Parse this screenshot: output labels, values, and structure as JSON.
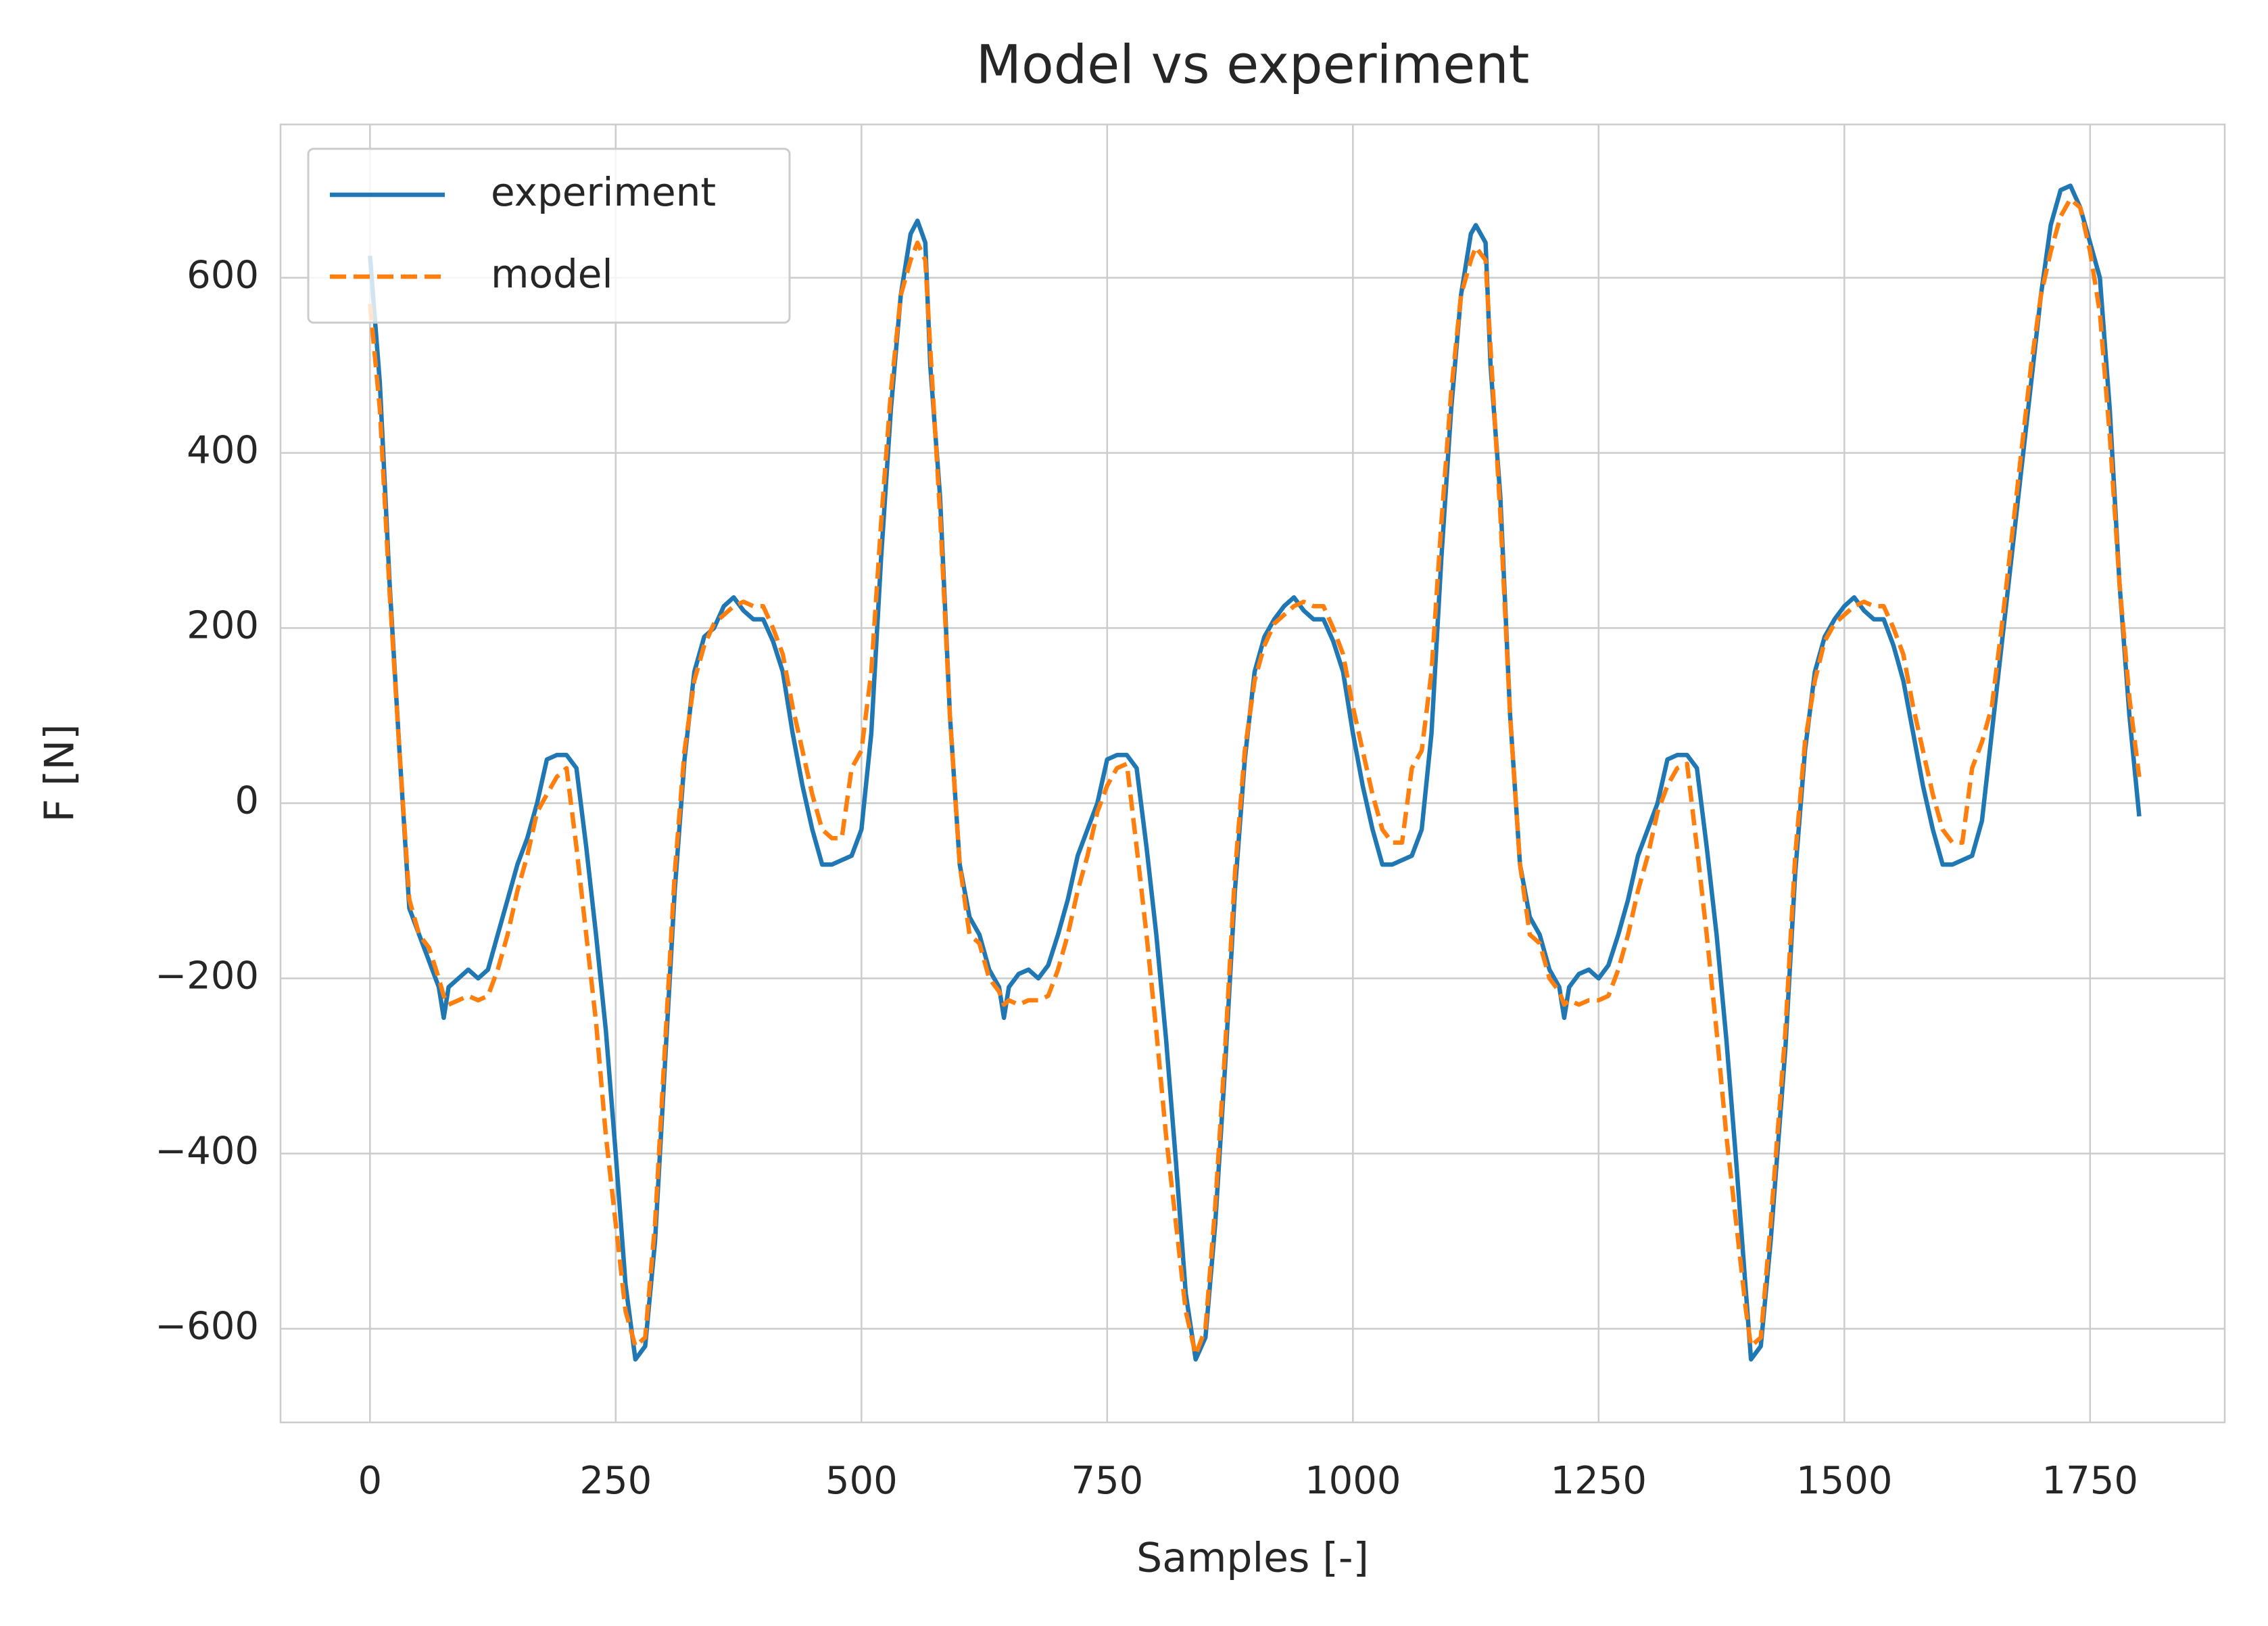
{
  "chart_data": {
    "type": "line",
    "title": "Model vs experiment",
    "xlabel": "Samples [-]",
    "ylabel": "F [N]",
    "x": [
      0,
      10,
      20,
      30,
      40,
      50,
      60,
      70,
      75,
      80,
      90,
      100,
      110,
      120,
      130,
      140,
      150,
      160,
      170,
      180,
      190,
      200,
      210,
      220,
      230,
      240,
      250,
      260,
      270,
      280,
      290,
      300,
      310,
      320,
      330,
      340,
      350,
      360,
      370,
      380,
      390,
      400,
      410,
      420,
      430,
      440,
      450,
      460,
      470,
      480,
      490,
      500,
      510,
      520,
      530,
      540,
      550,
      557,
      565,
      570,
      580,
      590,
      600,
      610,
      620,
      630,
      640,
      645,
      650,
      660,
      670,
      680,
      690,
      700,
      710,
      720,
      730,
      740,
      750,
      760,
      770,
      780,
      790,
      800,
      810,
      820,
      830,
      840,
      850,
      860,
      870,
      880,
      890,
      900,
      910,
      920,
      930,
      940,
      950,
      960,
      970,
      980,
      990,
      1000,
      1010,
      1020,
      1030,
      1040,
      1050,
      1060,
      1070,
      1080,
      1090,
      1100,
      1110,
      1120,
      1125,
      1135,
      1140,
      1150,
      1160,
      1170,
      1180,
      1190,
      1200,
      1210,
      1215,
      1220,
      1230,
      1240,
      1250,
      1260,
      1270,
      1280,
      1290,
      1300,
      1310,
      1320,
      1330,
      1340,
      1350,
      1360,
      1370,
      1380,
      1390,
      1400,
      1405,
      1415,
      1425,
      1440,
      1450,
      1460,
      1470,
      1480,
      1490,
      1500,
      1510,
      1520,
      1530,
      1540,
      1550,
      1560,
      1570,
      1580,
      1590,
      1600,
      1610,
      1620,
      1630,
      1640,
      1650,
      1660,
      1670,
      1680,
      1690,
      1700,
      1710,
      1720,
      1730,
      1740,
      1750,
      1760,
      1770,
      1780,
      1790,
      1800
    ],
    "series": [
      {
        "name": "experiment",
        "color": "#1f77b4",
        "dash": "solid",
        "values": [
          625,
          480,
          250,
          60,
          -120,
          -150,
          -180,
          -210,
          -245,
          -210,
          -200,
          -190,
          -200,
          -190,
          -150,
          -110,
          -70,
          -40,
          0,
          50,
          55,
          55,
          40,
          -50,
          -150,
          -260,
          -400,
          -550,
          -635,
          -620,
          -500,
          -300,
          -100,
          50,
          150,
          190,
          200,
          225,
          235,
          220,
          210,
          210,
          185,
          150,
          80,
          20,
          -30,
          -70,
          -70,
          -65,
          -60,
          -30,
          80,
          280,
          450,
          580,
          650,
          665,
          640,
          500,
          350,
          100,
          -70,
          -130,
          -150,
          -190,
          -210,
          -245,
          -210,
          -195,
          -190,
          -200,
          -185,
          -150,
          -110,
          -60,
          -30,
          0,
          50,
          55,
          55,
          40,
          -50,
          -150,
          -270,
          -410,
          -560,
          -635,
          -610,
          -480,
          -300,
          -100,
          50,
          150,
          190,
          210,
          225,
          235,
          220,
          210,
          210,
          185,
          150,
          80,
          20,
          -30,
          -70,
          -70,
          -65,
          -60,
          -30,
          80,
          280,
          450,
          580,
          650,
          660,
          640,
          500,
          350,
          100,
          -70,
          -130,
          -150,
          -190,
          -210,
          -245,
          -210,
          -195,
          -190,
          -200,
          -185,
          -150,
          -110,
          -60,
          -30,
          0,
          50,
          55,
          55,
          40,
          -50,
          -150,
          -270,
          -410,
          -560,
          -635,
          -620,
          -500,
          -280,
          -80,
          60,
          150,
          190,
          210,
          225,
          235,
          220,
          210,
          210,
          180,
          140,
          80,
          20,
          -30,
          -70,
          -70,
          -65,
          -60,
          -20,
          80,
          180,
          280,
          380,
          480,
          580,
          660,
          700,
          705,
          680,
          640,
          600,
          450,
          250,
          100,
          -15
        ]
      },
      {
        "name": "model",
        "color": "#ff7f0e",
        "dash": "dashed",
        "values": [
          570,
          450,
          240,
          60,
          -110,
          -150,
          -165,
          -200,
          -220,
          -230,
          -225,
          -220,
          -225,
          -220,
          -190,
          -150,
          -100,
          -60,
          -10,
          10,
          30,
          40,
          -50,
          -150,
          -250,
          -380,
          -480,
          -580,
          -620,
          -610,
          -480,
          -280,
          -80,
          60,
          140,
          180,
          205,
          215,
          225,
          230,
          225,
          225,
          200,
          170,
          110,
          60,
          10,
          -30,
          -40,
          -40,
          40,
          60,
          150,
          320,
          470,
          580,
          620,
          640,
          620,
          520,
          330,
          100,
          -70,
          -150,
          -160,
          -200,
          -215,
          -230,
          -225,
          -230,
          -225,
          -225,
          -220,
          -190,
          -150,
          -100,
          -60,
          -10,
          20,
          40,
          45,
          -50,
          -150,
          -260,
          -380,
          -480,
          -580,
          -630,
          -600,
          -460,
          -280,
          -80,
          60,
          140,
          180,
          205,
          215,
          225,
          230,
          225,
          225,
          200,
          170,
          110,
          60,
          10,
          -30,
          -45,
          -45,
          40,
          60,
          150,
          320,
          470,
          580,
          620,
          635,
          620,
          520,
          330,
          100,
          -70,
          -150,
          -160,
          -200,
          -215,
          -230,
          -225,
          -230,
          -225,
          -225,
          -220,
          -190,
          -150,
          -100,
          -60,
          -10,
          20,
          40,
          45,
          -50,
          -150,
          -260,
          -380,
          -480,
          -580,
          -620,
          -610,
          -480,
          -260,
          -60,
          70,
          140,
          185,
          205,
          215,
          225,
          230,
          225,
          225,
          200,
          170,
          110,
          60,
          10,
          -30,
          -45,
          -45,
          40,
          70,
          110,
          200,
          300,
          400,
          500,
          580,
          630,
          670,
          690,
          680,
          630,
          560,
          420,
          250,
          120,
          30
        ]
      }
    ],
    "xlim": [
      -91,
      1887
    ],
    "ylim": [
      -707,
      775
    ],
    "xticks": [
      0,
      250,
      500,
      750,
      1000,
      1250,
      1500,
      1750
    ],
    "yticks": [
      {
        "value": -600,
        "label": "−600"
      },
      {
        "value": -400,
        "label": "−400"
      },
      {
        "value": -200,
        "label": "−200"
      },
      0,
      200,
      400,
      600
    ],
    "grid": true,
    "legend": "upper left"
  }
}
